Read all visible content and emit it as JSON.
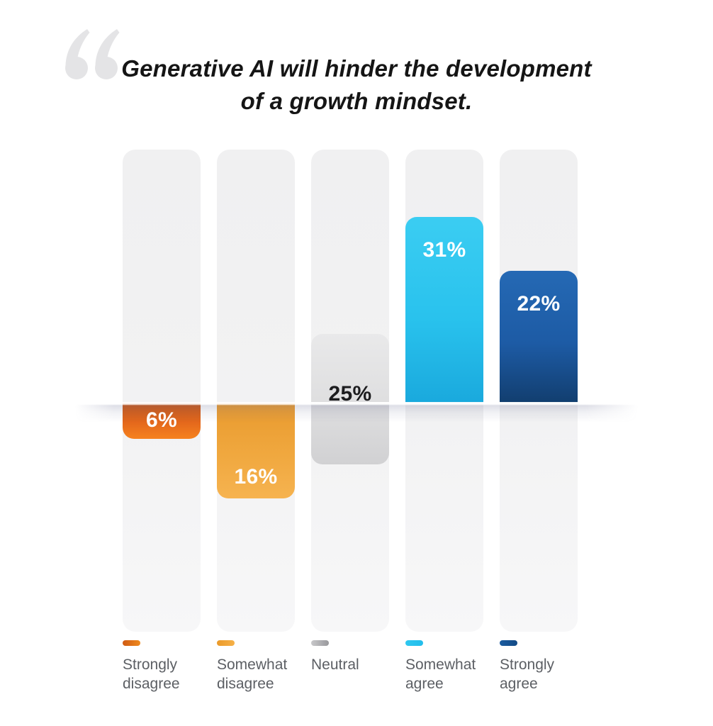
{
  "page": {
    "background": "#ffffff"
  },
  "quote": {
    "glyph": "“",
    "color": "#e4e4e6"
  },
  "title": {
    "line1": "Generative AI will hinder the development",
    "line2": "of a growth mindset.",
    "color": "#151515"
  },
  "chart_data": {
    "type": "bar",
    "subtype": "diverging-rounded-columns",
    "title": "Generative AI will hinder the development of a growth mindset.",
    "categories": [
      "Strongly disagree",
      "Somewhat disagree",
      "Neutral",
      "Somewhat agree",
      "Strongly agree"
    ],
    "values": [
      6,
      16,
      25,
      31,
      22
    ],
    "value_labels": [
      "6%",
      "16%",
      "25%",
      "31%",
      "22%"
    ],
    "directions": [
      "down",
      "down",
      "center",
      "up",
      "up"
    ],
    "unit": "percent",
    "axis": "hidden",
    "grid": false,
    "legend_position": "bottom",
    "track_color": "#f2f2f3",
    "baseline_note": "disagree bars hang below the baseline, agree bars rise above it, neutral straddles it"
  },
  "bars": [
    {
      "category": "Strongly disagree",
      "value_label": "6%",
      "label_align": "center",
      "label_color": "#ffffff",
      "color_top": "#c85514",
      "color_mid": "#e4681c",
      "color_bottom": "#f6821f",
      "swatch_left": "#cf5a14",
      "swatch_right": "#ef8a1e",
      "legend_lines": [
        "Strongly",
        "disagree"
      ]
    },
    {
      "category": "Somewhat disagree",
      "value_label": "16%",
      "label_align": "bottom",
      "label_color": "#ffffff",
      "color_top": "#e99a2e",
      "color_mid": "#f0a83f",
      "color_bottom": "#f6b350",
      "swatch_left": "#ea9a2a",
      "swatch_right": "#f6b148",
      "legend_lines": [
        "Somewhat",
        "disagree"
      ]
    },
    {
      "category": "Neutral",
      "value_label": "25%",
      "label_align": "baseline-above",
      "label_color": "#1c1c1e",
      "color_top": "#e9e9ea",
      "color_mid": "#dededf",
      "color_bottom": "#d1d1d3",
      "swatch_left": "#c8c8ca",
      "swatch_right": "#98989c",
      "legend_lines": [
        "Neutral"
      ]
    },
    {
      "category": "Somewhat agree",
      "value_label": "31%",
      "label_align": "top",
      "label_color": "#ffffff",
      "color_top": "#3bcdf2",
      "color_mid": "#29c2ed",
      "color_bottom": "#1aa9dd",
      "swatch_left": "#2fc8f0",
      "swatch_right": "#22bdeb",
      "legend_lines": [
        "Somewhat",
        "agree"
      ]
    },
    {
      "category": "Strongly agree",
      "value_label": "22%",
      "label_align": "top",
      "label_color": "#ffffff",
      "color_top": "#2569b4",
      "color_mid": "#1d5ba5",
      "color_bottom": "#123e6f",
      "swatch_left": "#1b5ca0",
      "swatch_right": "#134a85",
      "legend_lines": [
        "Strongly",
        "agree"
      ]
    }
  ],
  "legend": {
    "text_color": "#5c5f64"
  }
}
